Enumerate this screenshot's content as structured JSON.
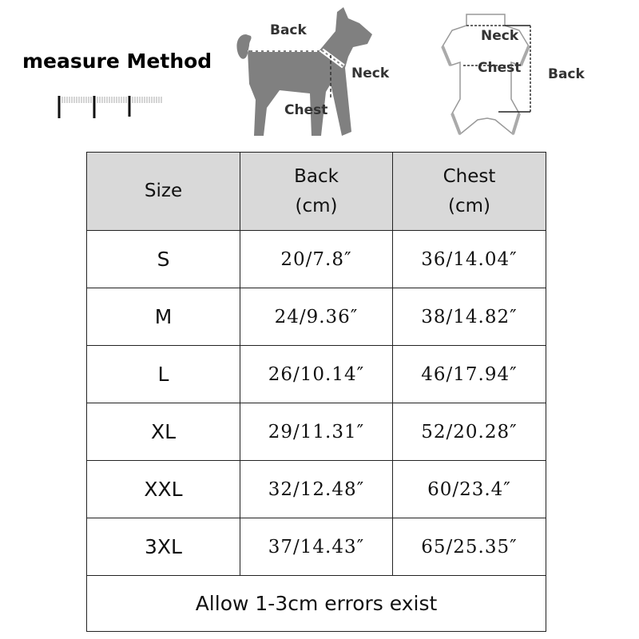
{
  "header": {
    "title": "measure Method",
    "dog_labels": {
      "back": "Back",
      "neck": "Neck",
      "chest": "Chest"
    },
    "garment_labels": {
      "neck": "Neck",
      "chest": "Chest",
      "back": "Back"
    }
  },
  "table": {
    "columns": [
      {
        "line1": "Size",
        "line2": ""
      },
      {
        "line1": "Back",
        "line2": "(cm)"
      },
      {
        "line1": "Chest",
        "line2": "(cm)"
      }
    ],
    "rows": [
      {
        "size": "S",
        "back": "20/7.8″",
        "chest": "36/14.04″"
      },
      {
        "size": "M",
        "back": "24/9.36″",
        "chest": "38/14.82″"
      },
      {
        "size": "L",
        "back": "26/10.14″",
        "chest": "46/17.94″"
      },
      {
        "size": "XL",
        "back": "29/11.31″",
        "chest": "52/20.28″"
      },
      {
        "size": "XXL",
        "back": "32/12.48″",
        "chest": "60/23.4″"
      },
      {
        "size": "3XL",
        "back": "37/14.43″",
        "chest": "65/25.35″"
      }
    ],
    "footer": "Allow 1-3cm errors exist"
  },
  "colors": {
    "header_bg": "#d9d9d9",
    "dog": "#808080",
    "border": "#222222"
  }
}
